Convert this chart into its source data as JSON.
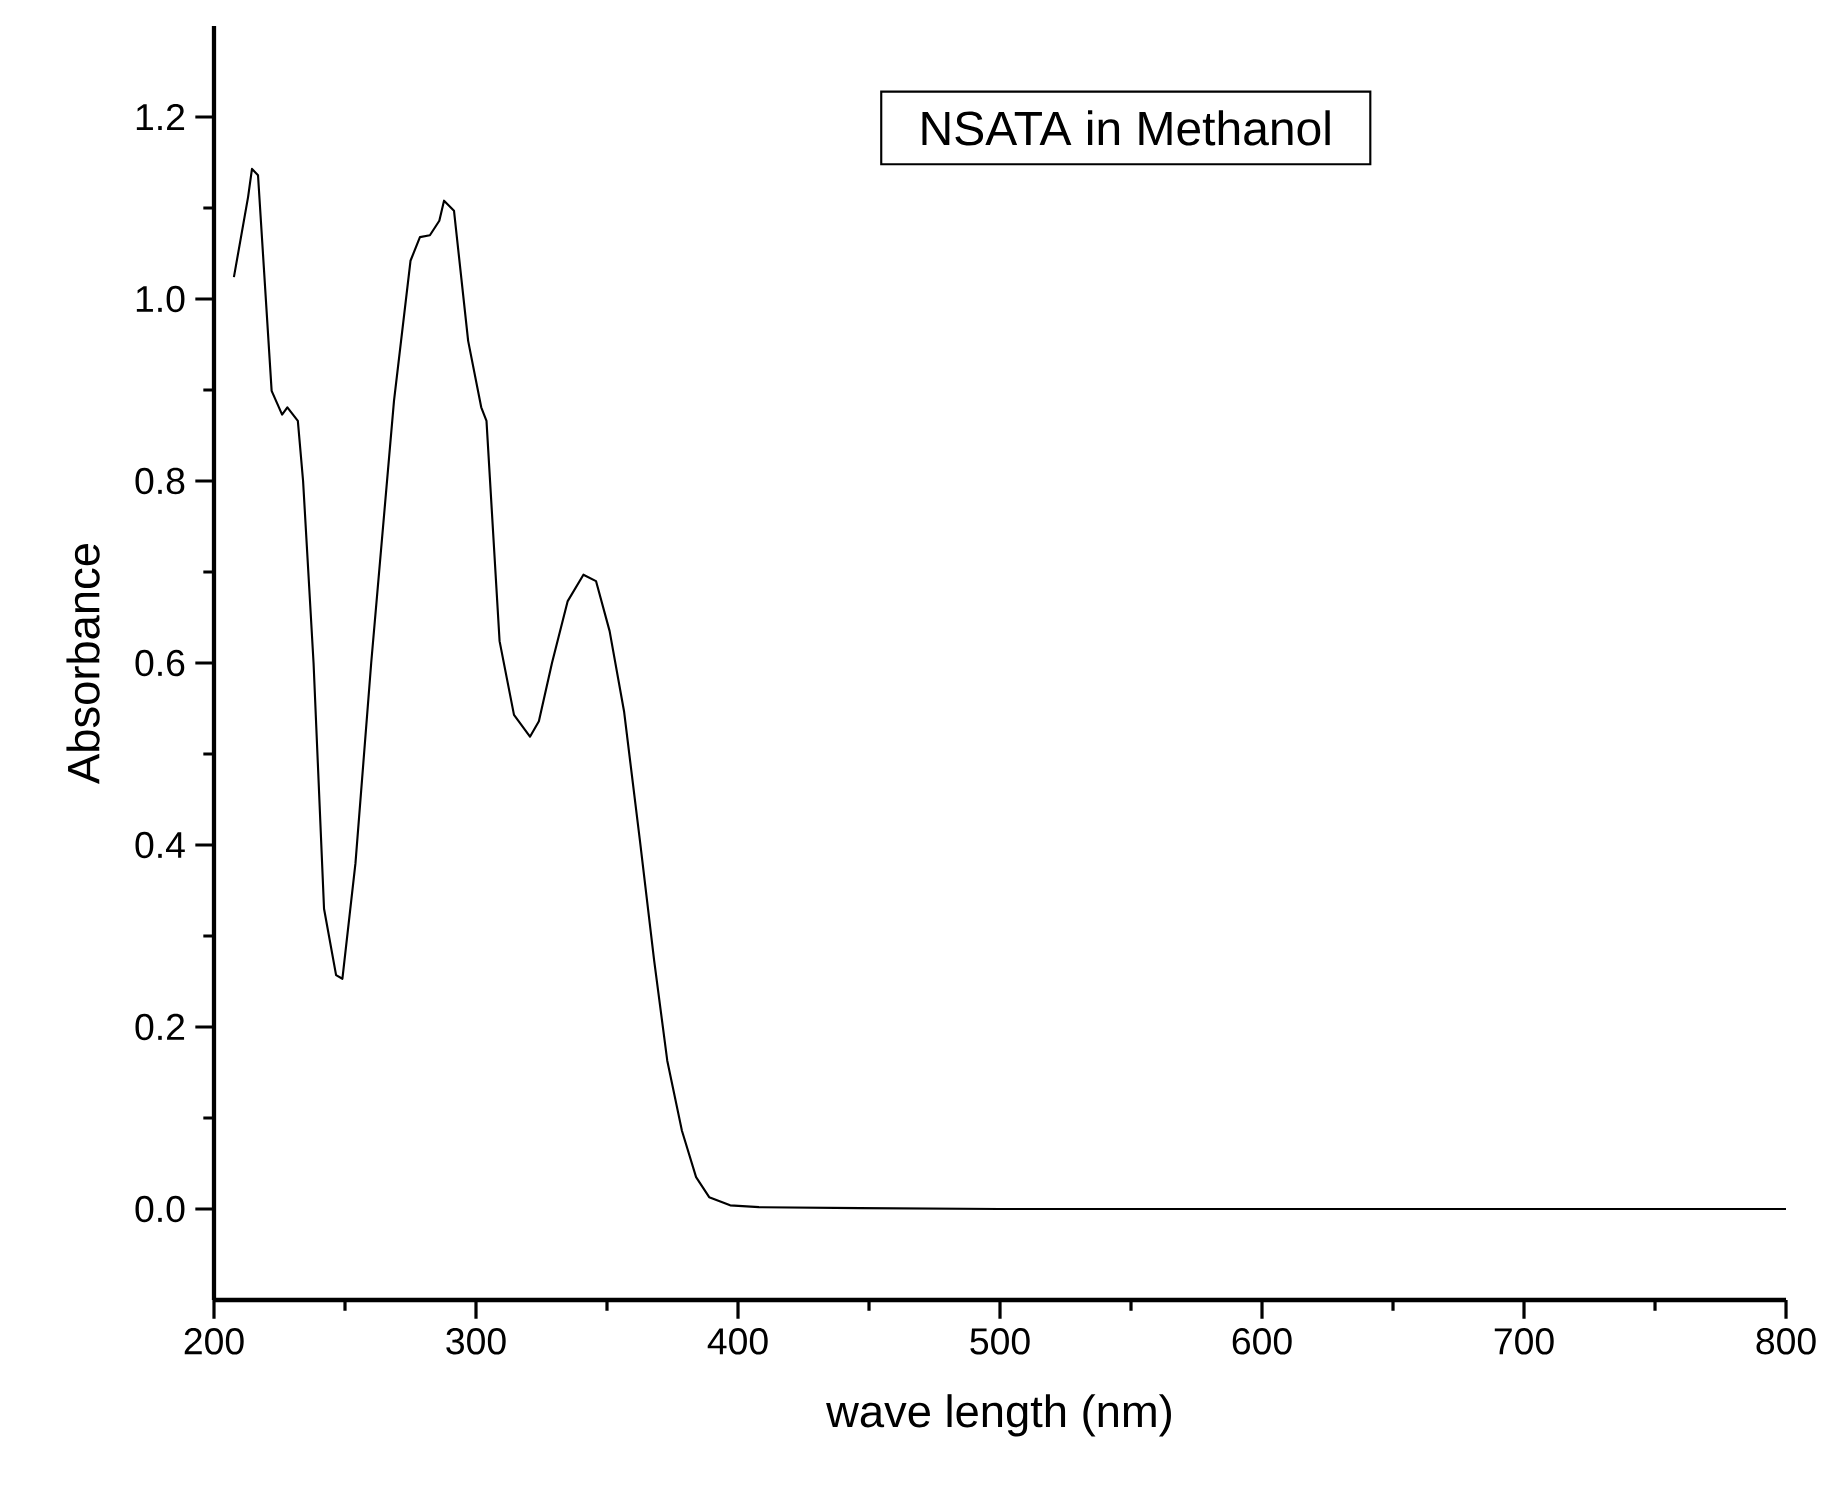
{
  "chart_data": {
    "type": "line",
    "title": "NSATA in Methanol",
    "xlabel": "wave length (nm)",
    "ylabel": "Absorbance",
    "xlim": [
      200,
      800
    ],
    "ylim": [
      -0.1,
      1.3
    ],
    "xticks": [
      200,
      300,
      400,
      500,
      600,
      700,
      800
    ],
    "yticks": [
      {
        "value": 0,
        "label": "0.0"
      },
      0.2,
      0.4,
      0.6,
      0.8,
      {
        "value": 1,
        "label": "1.0"
      },
      1.2
    ],
    "grid": false,
    "marker": "none",
    "line_style": "solid",
    "series": [
      {
        "color": "#000000",
        "x": [
          207.6,
          213,
          214.5,
          216.8,
          222,
          226,
          228,
          232,
          234,
          238,
          242,
          246.6,
          249,
          254,
          260,
          268.7,
          275,
          278.6,
          282.4,
          286,
          287.8,
          291.6,
          297,
          302,
          304,
          309,
          314.5,
          320.6,
          324,
          329,
          335,
          341,
          345.8,
          351,
          356.5,
          362.6,
          368,
          373,
          378.6,
          384,
          389,
          397,
          408,
          446.6,
          500,
          600,
          700,
          800
        ],
        "values": [
          1.024,
          1.112,
          1.143,
          1.136,
          0.899,
          0.873,
          0.881,
          0.866,
          0.8,
          0.6,
          0.33,
          0.257,
          0.253,
          0.38,
          0.6,
          0.888,
          1.042,
          1.068,
          1.07,
          1.086,
          1.108,
          1.097,
          0.954,
          0.881,
          0.866,
          0.624,
          0.543,
          0.519,
          0.536,
          0.6,
          0.668,
          0.697,
          0.69,
          0.635,
          0.547,
          0.404,
          0.273,
          0.163,
          0.086,
          0.035,
          0.013,
          0.004,
          0.002,
          0.001,
          0.0,
          0.0,
          0.0,
          0.0
        ]
      }
    ]
  }
}
